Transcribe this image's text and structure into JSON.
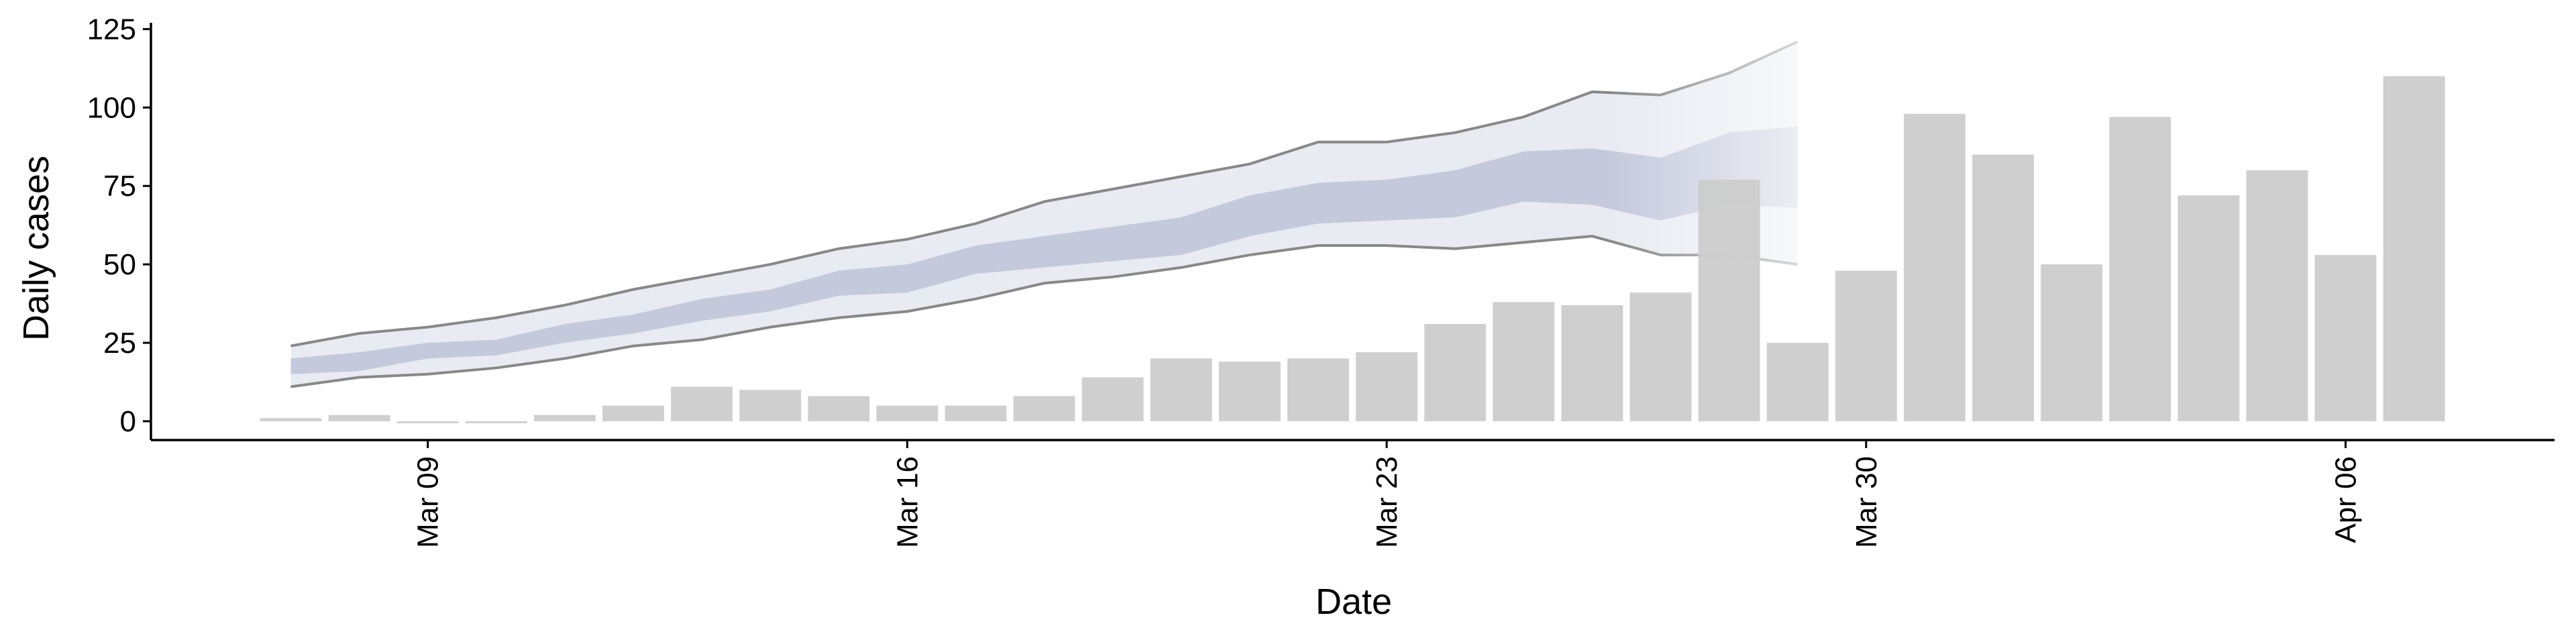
{
  "chart_data": {
    "type": "bar",
    "x_label": "Date",
    "y_label": "Daily cases",
    "categories": [
      null,
      null,
      "Mar 09",
      null,
      null,
      null,
      null,
      null,
      null,
      "Mar 16",
      null,
      null,
      null,
      null,
      null,
      null,
      "Mar 23",
      null,
      null,
      null,
      null,
      null,
      null,
      "Mar 30",
      null,
      null,
      null,
      null,
      null,
      null,
      "Apr 06",
      null
    ],
    "values": [
      1,
      2,
      0,
      0,
      2,
      5,
      11,
      10,
      8,
      5,
      5,
      8,
      14,
      20,
      19,
      20,
      22,
      31,
      38,
      37,
      41,
      77,
      25,
      48,
      98,
      85,
      50,
      97,
      72,
      80,
      53,
      110
    ],
    "color": "#cccccc",
    "bands": [
      {
        "lower": [
          11,
          14,
          15,
          17,
          20,
          24,
          26,
          30,
          33,
          35,
          39,
          44,
          46,
          49,
          53,
          56,
          56,
          55,
          57,
          59,
          53,
          53,
          50,
          null,
          null,
          null,
          null,
          null,
          null,
          null,
          null,
          null
        ],
        "upper": [
          24,
          28,
          30,
          33,
          37,
          42,
          46,
          50,
          55,
          58,
          63,
          70,
          74,
          78,
          82,
          89,
          89,
          92,
          97,
          105,
          104,
          111,
          121,
          null,
          null,
          null,
          null,
          null,
          null,
          null,
          null,
          null
        ],
        "color": "#e9ebf2",
        "line_color": "#888888"
      },
      {
        "lower": [
          15,
          16,
          20,
          21,
          25,
          28,
          32,
          35,
          40,
          41,
          47,
          49,
          51,
          53,
          59,
          63,
          64,
          65,
          70,
          69,
          64,
          69,
          68,
          null,
          null,
          null,
          null,
          null,
          null,
          null,
          null,
          null
        ],
        "upper": [
          20,
          22,
          25,
          26,
          31,
          34,
          39,
          42,
          48,
          50,
          56,
          59,
          62,
          65,
          72,
          76,
          77,
          80,
          86,
          87,
          84,
          92,
          94,
          null,
          null,
          null,
          null,
          null,
          null,
          null,
          null,
          null
        ],
        "color": "#c4c9dc"
      }
    ],
    "ylim": [
      -6,
      127
    ],
    "yticks": [
      0,
      25,
      50,
      75,
      100,
      125
    ]
  }
}
